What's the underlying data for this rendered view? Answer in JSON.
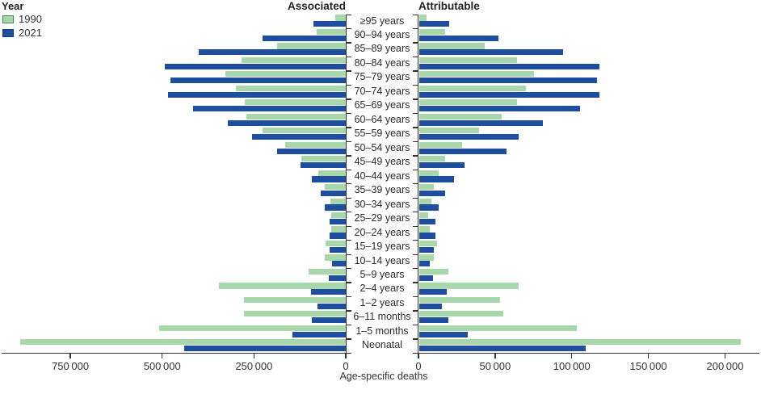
{
  "legend": {
    "title": "Year",
    "entries": [
      {
        "label": "1990",
        "color": "#a9d7ac",
        "border": "#3c8c45"
      },
      {
        "label": "2021",
        "color": "#1d4f9e",
        "border": "#123a73"
      }
    ]
  },
  "chart_data": {
    "type": "bar",
    "orientation": "horizontal-diverging-panels",
    "xlabel": "Age-specific deaths",
    "legend_position": "top-left",
    "colors": {
      "1990": "#a9d7ac",
      "2021": "#1d4f9e"
    },
    "categories": [
      "≥95 years",
      "90–94 years",
      "85–89 years",
      "80–84 years",
      "75–79 years",
      "70–74 years",
      "65–69 years",
      "60–64 years",
      "55–59 years",
      "50–54 years",
      "45–49 years",
      "40–44 years",
      "35–39 years",
      "30–34 years",
      "25–29 years",
      "20–24 years",
      "15–19 years",
      "10–14 years",
      "5–9 years",
      "2–4 years",
      "1–2 years",
      "6–11 months",
      "1–5 months",
      "Neonatal"
    ],
    "panels": [
      {
        "name": "Associated",
        "direction": "right-to-left",
        "xlim": [
          942000,
          0
        ],
        "ticks": [
          750000,
          500000,
          250000,
          0
        ],
        "tick_labels": [
          "750 000",
          "500 000",
          "250 000",
          "0"
        ],
        "series": [
          {
            "name": "1990",
            "values": [
              28000,
              79000,
              188000,
              283000,
              328000,
              300000,
              274000,
              271000,
              227000,
              166000,
              120000,
              75000,
              58000,
              42000,
              40000,
              40000,
              56000,
              58000,
              101000,
              345000,
              277000,
              277000,
              508000,
              887000
            ]
          },
          {
            "name": "2021",
            "values": [
              87000,
              227000,
              401000,
              493000,
              478000,
              485000,
              416000,
              322000,
              255000,
              186000,
              123000,
              92000,
              69000,
              57000,
              45000,
              45000,
              43000,
              37000,
              46000,
              95000,
              76000,
              93000,
              146000,
              440000
            ]
          }
        ]
      },
      {
        "name": "Attributable",
        "direction": "left-to-right",
        "xlim": [
          0,
          223000
        ],
        "ticks": [
          0,
          50000,
          100000,
          150000,
          200000
        ],
        "tick_labels": [
          "0",
          "50 000",
          "100 000",
          "150 000",
          "200 000"
        ],
        "series": [
          {
            "name": "1990",
            "values": [
              5000,
              17000,
              43000,
              64000,
              75000,
              70000,
              64000,
              54000,
              39000,
              28000,
              17000,
              13000,
              10000,
              8000,
              6000,
              7000,
              12000,
              10000,
              19000,
              65000,
              53000,
              55000,
              103000,
              210000
            ]
          },
          {
            "name": "2021",
            "values": [
              20000,
              52000,
              94000,
              118000,
              116000,
              118000,
              105000,
              81000,
              65000,
              57000,
              30000,
              23000,
              17000,
              13000,
              11000,
              11000,
              10000,
              7000,
              9000,
              18000,
              15000,
              19000,
              32000,
              109000
            ]
          }
        ]
      }
    ]
  }
}
